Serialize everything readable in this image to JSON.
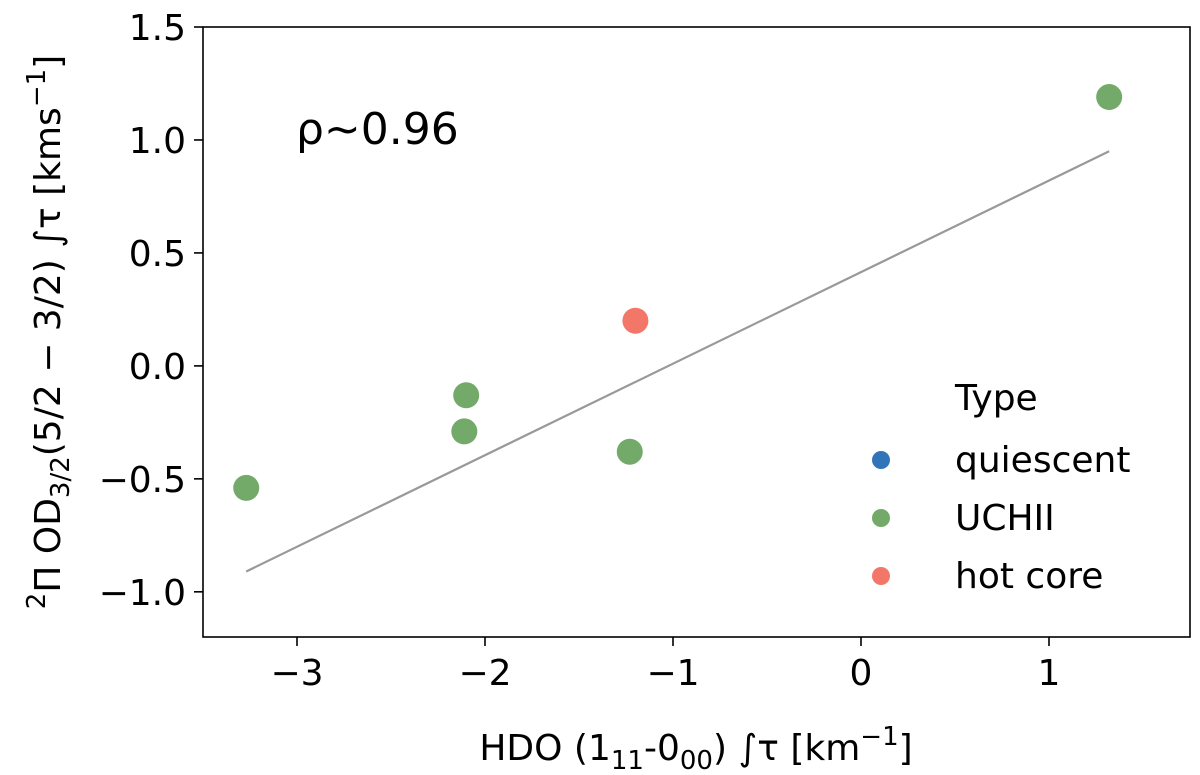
{
  "chart_data": {
    "type": "scatter",
    "title": "",
    "xlabel": {
      "pre": "HDO (1",
      "sub1": "11",
      "mid": "-0",
      "sub2": "00",
      "post": ") ∫τ [km",
      "sup": "−1",
      "end": "]"
    },
    "ylabel": {
      "sup1": "2",
      "pre": "Π OD",
      "sub": "3/2",
      "mid": "(5/2 − 3/2) ∫τ [kms",
      "sup2": "−1",
      "end": "]"
    },
    "xlim": [
      -3.5,
      1.75
    ],
    "ylim": [
      -1.2,
      1.5
    ],
    "xticks": [
      -3,
      -2,
      -1,
      0,
      1
    ],
    "xtick_labels": [
      "−3",
      "−2",
      "−1",
      "0",
      "1"
    ],
    "yticks": [
      -1.0,
      -0.5,
      0.0,
      0.5,
      1.0,
      1.5
    ],
    "ytick_labels": [
      "−1.0",
      "−0.5",
      "0.0",
      "0.5",
      "1.0",
      "1.5"
    ],
    "annotation": "ρ~0.96",
    "legend": {
      "title": "Type",
      "position": "lower-right",
      "entries": [
        {
          "label": "quiescent",
          "color": "#3274b8"
        },
        {
          "label": "UCHII",
          "color": "#73aa6a"
        },
        {
          "label": "hot core",
          "color": "#f27769"
        }
      ]
    },
    "series": [
      {
        "name": "UCHII",
        "color": "#73aa6a",
        "points": [
          {
            "x": -3.27,
            "y": -0.54
          },
          {
            "x": -2.1,
            "y": -0.13
          },
          {
            "x": -2.11,
            "y": -0.29
          },
          {
            "x": -1.23,
            "y": -0.38
          },
          {
            "x": 1.32,
            "y": 1.19
          }
        ]
      },
      {
        "name": "hot core",
        "color": "#f27769",
        "points": [
          {
            "x": -1.2,
            "y": 0.2
          }
        ]
      }
    ],
    "fit_line": {
      "color": "#999999",
      "x": [
        -3.27,
        1.32
      ],
      "y": [
        -0.91,
        0.95
      ]
    }
  }
}
